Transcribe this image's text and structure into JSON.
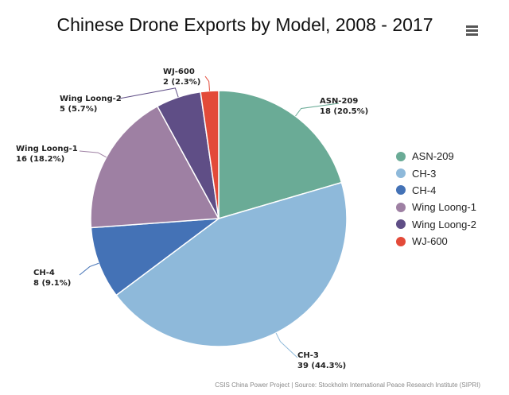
{
  "chart_data": {
    "type": "pie",
    "title": "Chinese Drone Exports by Model, 2008 - 2017",
    "categories": [
      "ASN-209",
      "CH-3",
      "CH-4",
      "Wing Loong-1",
      "Wing Loong-2",
      "WJ-600"
    ],
    "values": [
      18,
      39,
      8,
      16,
      5,
      2
    ],
    "data_labels": [
      {
        "name": "ASN-209",
        "value_text": "18 (20.5%)"
      },
      {
        "name": "CH-3",
        "value_text": "39 (44.3%)"
      },
      {
        "name": "CH-4",
        "value_text": "8 (9.1%)"
      },
      {
        "name": "Wing Loong-1",
        "value_text": "16 (18.2%)"
      },
      {
        "name": "Wing Loong-2",
        "value_text": "5 (5.7%)"
      },
      {
        "name": "WJ-600",
        "value_text": "2 (2.3%)"
      }
    ],
    "colors": [
      "#6aab96",
      "#8eb9da",
      "#4472b6",
      "#9e80a3",
      "#5f4e86",
      "#e34a39"
    ],
    "legend_position": "right"
  },
  "credits": "CSIS China Power Project | Source: Stockholm International Peace Research Institute (SIPRI)"
}
